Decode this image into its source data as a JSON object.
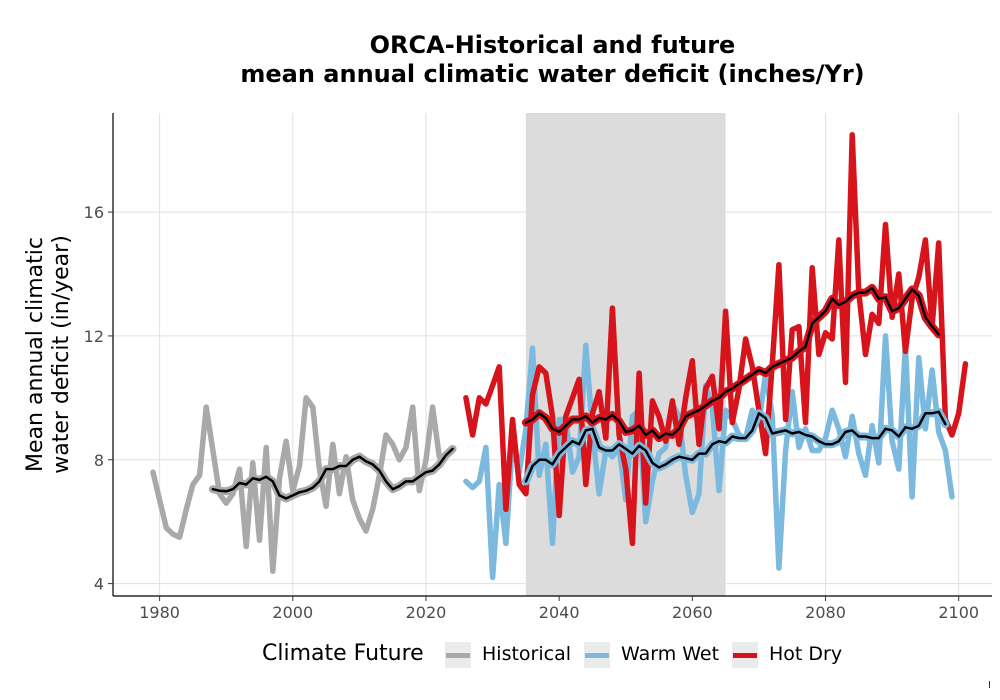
{
  "chart_data": {
    "type": "line",
    "title": [
      "ORCA-Historical and future",
      "mean annual climatic water deficit (inches/Yr)"
    ],
    "ylabel": [
      "Mean annual climatic",
      "water deficit (in/year)"
    ],
    "xlabel": "",
    "xlim": [
      1973,
      2105
    ],
    "ylim": [
      3.6,
      19.2
    ],
    "x_ticks": [
      1980,
      2000,
      2020,
      2040,
      2060,
      2080,
      2100
    ],
    "y_ticks": [
      4,
      8,
      12,
      16
    ],
    "grid": true,
    "shaded_period": [
      2035,
      2065
    ],
    "legend": {
      "title": "Climate Future",
      "position": "bottom",
      "entries": [
        "Historical",
        "Warm Wet",
        "Hot Dry"
      ]
    },
    "colors": {
      "Historical": "#a9a9a9",
      "Warm Wet": "#7cb9df",
      "Hot Dry": "#d7141b",
      "smooth": "#000000",
      "shade": "#dcdcdc"
    },
    "series": [
      {
        "key": "Historical",
        "x_start": 1979,
        "values": [
          7.6,
          6.7,
          5.8,
          5.6,
          5.5,
          6.4,
          7.2,
          7.5,
          9.7,
          8.3,
          6.9,
          6.6,
          6.9,
          7.7,
          5.2,
          7.9,
          5.4,
          8.4,
          4.4,
          7.4,
          8.6,
          7.0,
          7.8,
          10.0,
          9.7,
          7.7,
          6.5,
          8.5,
          6.9,
          8.1,
          6.7,
          6.1,
          5.7,
          6.4,
          7.5,
          8.8,
          8.5,
          8.0,
          8.4,
          9.7,
          7.0,
          8.0,
          9.7,
          8.1
        ]
      },
      {
        "key": "Warm Wet",
        "x_start": 2026,
        "values": [
          7.3,
          7.1,
          7.3,
          8.4,
          4.2,
          7.2,
          5.3,
          8.6,
          7.6,
          9.0,
          11.6,
          7.5,
          8.5,
          5.3,
          9.3,
          9.3,
          7.6,
          8.1,
          11.7,
          8.9,
          6.9,
          8.3,
          8.1,
          8.4,
          6.7,
          9.4,
          9.6,
          6.0,
          7.3,
          8.2,
          8.4,
          9.8,
          9.4,
          7.5,
          6.3,
          6.9,
          10.4,
          9.7,
          7.0,
          9.6,
          9.3,
          8.8,
          8.7,
          9.6,
          9.2,
          10.8,
          9.4,
          4.5,
          8.3,
          10.2,
          8.4,
          9.0,
          8.3,
          8.3,
          8.7,
          9.6,
          9.0,
          8.1,
          9.4,
          8.2,
          7.5,
          9.1,
          7.9,
          12.0,
          8.6,
          7.7,
          11.7,
          6.8,
          11.3,
          9.0,
          10.9,
          8.9,
          8.3,
          6.8
        ]
      },
      {
        "key": "Hot Dry",
        "x_start": 2026,
        "values": [
          10.0,
          8.8,
          10.0,
          9.8,
          10.4,
          11.0,
          6.4,
          9.3,
          7.2,
          6.9,
          10.1,
          11.0,
          10.8,
          9.4,
          6.2,
          9.4,
          10.0,
          10.6,
          7.2,
          9.5,
          10.2,
          8.7,
          12.9,
          8.8,
          7.7,
          5.3,
          10.8,
          6.6,
          9.9,
          9.4,
          8.6,
          9.9,
          8.5,
          10.0,
          11.2,
          8.5,
          10.3,
          10.7,
          9.0,
          12.8,
          9.2,
          10.3,
          11.9,
          11.0,
          9.6,
          8.2,
          11.1,
          14.3,
          9.3,
          12.2,
          12.3,
          9.2,
          14.2,
          11.4,
          12.1,
          11.9,
          15.1,
          10.5,
          18.5,
          13.4,
          11.4,
          12.7,
          12.4,
          15.6,
          12.6,
          14.0,
          11.5,
          13.2,
          13.9,
          15.1,
          12.3,
          15.0,
          9.3,
          8.8,
          9.5,
          11.1
        ]
      }
    ],
    "smooth_series": [
      {
        "key": "Historical",
        "x_start": 1988,
        "values": [
          7.05,
          7.0,
          6.98,
          7.05,
          7.25,
          7.2,
          7.4,
          7.35,
          7.45,
          7.3,
          6.85,
          6.75,
          6.85,
          6.95,
          7.0,
          7.1,
          7.3,
          7.7,
          7.7,
          7.8,
          7.8,
          8.0,
          8.1,
          7.95,
          7.85,
          7.65,
          7.3,
          7.05,
          7.15,
          7.3,
          7.3,
          7.45,
          7.6,
          7.65,
          7.85,
          8.15,
          8.35
        ]
      },
      {
        "key": "Warm Wet",
        "x_start": 2035,
        "values": [
          7.3,
          7.8,
          8.0,
          8.0,
          7.85,
          8.2,
          8.4,
          8.6,
          8.5,
          8.95,
          9.0,
          8.4,
          8.3,
          8.3,
          8.5,
          8.35,
          8.2,
          8.45,
          8.3,
          7.9,
          7.75,
          7.85,
          8.0,
          8.1,
          8.05,
          8.0,
          8.2,
          8.2,
          8.5,
          8.6,
          8.55,
          8.75,
          8.7,
          8.7,
          8.95,
          9.5,
          9.35,
          8.85,
          8.9,
          8.95,
          8.85,
          8.9,
          8.8,
          8.75,
          8.6,
          8.5,
          8.5,
          8.6,
          8.9,
          8.95,
          8.75,
          8.75,
          8.7,
          8.7,
          9.0,
          8.95,
          8.75,
          9.05,
          9.0,
          9.1,
          9.5,
          9.5,
          9.55,
          9.15
        ]
      },
      {
        "key": "Hot Dry",
        "x_start": 2035,
        "values": [
          9.2,
          9.3,
          9.5,
          9.35,
          9.0,
          8.9,
          9.1,
          9.3,
          9.3,
          9.4,
          9.2,
          9.35,
          9.3,
          9.45,
          9.25,
          8.9,
          8.95,
          9.1,
          8.8,
          8.95,
          8.7,
          8.85,
          8.8,
          9.0,
          9.4,
          9.5,
          9.6,
          9.75,
          9.9,
          10.0,
          10.2,
          10.3,
          10.45,
          10.6,
          10.75,
          10.9,
          10.8,
          11.0,
          11.1,
          11.2,
          11.3,
          11.5,
          11.65,
          12.4,
          12.6,
          12.8,
          13.2,
          13.0,
          13.1,
          13.3,
          13.4,
          13.4,
          13.55,
          13.2,
          13.25,
          12.8,
          12.9,
          13.2,
          13.5,
          13.3,
          12.6,
          12.3,
          12.05
        ]
      }
    ]
  }
}
